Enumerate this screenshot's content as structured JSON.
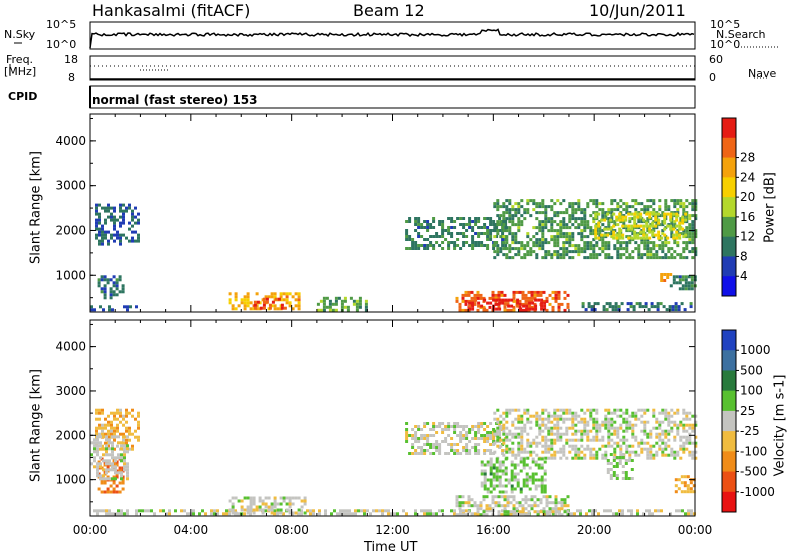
{
  "header": {
    "station": "Hankasalmi (fitACF)",
    "beam": "Beam 12",
    "date": "10/Jun/2011"
  },
  "strips": {
    "nsky_label": "N.Sky",
    "nsearch_label": "N.Search",
    "noise_ticks": [
      "10^5",
      "10^0"
    ],
    "freq_label_1": "Freq.",
    "freq_label_2": "[MHz]",
    "freq_ticks": [
      "18",
      "8"
    ],
    "nave_label": "Nave",
    "nave_ticks": [
      "60",
      "0"
    ],
    "cpid_label": "CPID",
    "cpid_text": "normal (fast stereo) 153"
  },
  "axes": {
    "ylabel": "Slant Range [km]",
    "xlabel": "Time UT",
    "xticks": [
      "00:00",
      "04:00",
      "08:00",
      "12:00",
      "16:00",
      "20:00",
      "00:00"
    ],
    "yticks": [
      "1000",
      "2000",
      "3000",
      "4000"
    ]
  },
  "colors": {
    "power": [
      "#1010e8",
      "#203cb4",
      "#2e7560",
      "#4f9a45",
      "#b4d82c",
      "#f7d000",
      "#f4a20c",
      "#ef6516",
      "#e51c14"
    ],
    "velocity": [
      "#2042c0",
      "#3c70a0",
      "#287a3c",
      "#58c030",
      "#c4c4c0",
      "#f0bc40",
      "#f08c18",
      "#ec5014",
      "#e81212"
    ],
    "noise_line": "#000000"
  },
  "chart_data": [
    {
      "type": "heatmap",
      "title": "",
      "ylabel": "Slant Range [km]",
      "xlabel": "Time UT",
      "x_unit": "hours UT",
      "xlim": [
        0,
        24
      ],
      "ylim": [
        180,
        4600
      ],
      "colorbar": {
        "label": "Power [dB]",
        "ticks": [
          "4",
          "8",
          "12",
          "16",
          "20",
          "24",
          "28"
        ],
        "range": [
          0,
          30
        ]
      },
      "regions": [
        {
          "t": [
            0.0,
            1.8
          ],
          "r": [
            200,
            330
          ],
          "value": 6
        },
        {
          "t": [
            0.2,
            1.9
          ],
          "r": [
            1700,
            2600
          ],
          "value": 7
        },
        {
          "t": [
            0.3,
            1.3
          ],
          "r": [
            500,
            1000
          ],
          "value": 8
        },
        {
          "t": [
            5.5,
            8.3
          ],
          "r": [
            250,
            620
          ],
          "value": 21
        },
        {
          "t": [
            6.5,
            7.8
          ],
          "r": [
            280,
            500
          ],
          "value": 27
        },
        {
          "t": [
            9.0,
            11.0
          ],
          "r": [
            250,
            520
          ],
          "value": 12
        },
        {
          "t": [
            14.5,
            19.0
          ],
          "r": [
            200,
            650
          ],
          "value": 25
        },
        {
          "t": [
            15.0,
            18.0
          ],
          "r": [
            220,
            480
          ],
          "value": 29
        },
        {
          "t": [
            12.5,
            16.5
          ],
          "r": [
            1600,
            2300
          ],
          "value": 9
        },
        {
          "t": [
            16.0,
            24.0
          ],
          "r": [
            1400,
            2700
          ],
          "value": 11
        },
        {
          "t": [
            20.0,
            23.6
          ],
          "r": [
            1800,
            2400
          ],
          "value": 16
        },
        {
          "t": [
            19.5,
            24.0
          ],
          "r": [
            200,
            400
          ],
          "value": 8
        },
        {
          "t": [
            22.5,
            23.2
          ],
          "r": [
            850,
            1050
          ],
          "value": 22
        },
        {
          "t": [
            23.0,
            24.0
          ],
          "r": [
            700,
            1000
          ],
          "value": 9
        }
      ]
    },
    {
      "type": "heatmap",
      "title": "",
      "ylabel": "Slant Range [km]",
      "xlabel": "Time UT",
      "x_unit": "hours UT",
      "xlim": [
        0,
        24
      ],
      "ylim": [
        180,
        4600
      ],
      "colorbar": {
        "label": "Velocity [m s-1]",
        "ticks": [
          "1000",
          "500",
          "100",
          "25",
          "-25",
          "-100",
          "-500",
          "-1000"
        ],
        "range": [
          -1200,
          1200
        ]
      },
      "regions": [
        {
          "t": [
            0.0,
            24.0
          ],
          "r": [
            200,
            330
          ],
          "value": 0
        },
        {
          "t": [
            0.2,
            1.9
          ],
          "r": [
            1700,
            2600
          ],
          "value": -300
        },
        {
          "t": [
            0.3,
            1.3
          ],
          "r": [
            700,
            1500
          ],
          "value": -600
        },
        {
          "t": [
            0.0,
            1.5
          ],
          "r": [
            1000,
            2000
          ],
          "value": 0
        },
        {
          "t": [
            5.5,
            8.5
          ],
          "r": [
            250,
            620
          ],
          "value": 0
        },
        {
          "t": [
            14.5,
            19.0
          ],
          "r": [
            200,
            650
          ],
          "value": 0
        },
        {
          "t": [
            12.5,
            16.5
          ],
          "r": [
            1600,
            2300
          ],
          "value": 0
        },
        {
          "t": [
            16.0,
            24.0
          ],
          "r": [
            1500,
            2600
          ],
          "value": 0
        },
        {
          "t": [
            15.5,
            18.0
          ],
          "r": [
            700,
            1500
          ],
          "value": 200
        },
        {
          "t": [
            20.5,
            21.5
          ],
          "r": [
            1000,
            1600
          ],
          "value": 150
        },
        {
          "t": [
            23.2,
            24.0
          ],
          "r": [
            700,
            1100
          ],
          "value": -400
        }
      ]
    }
  ]
}
